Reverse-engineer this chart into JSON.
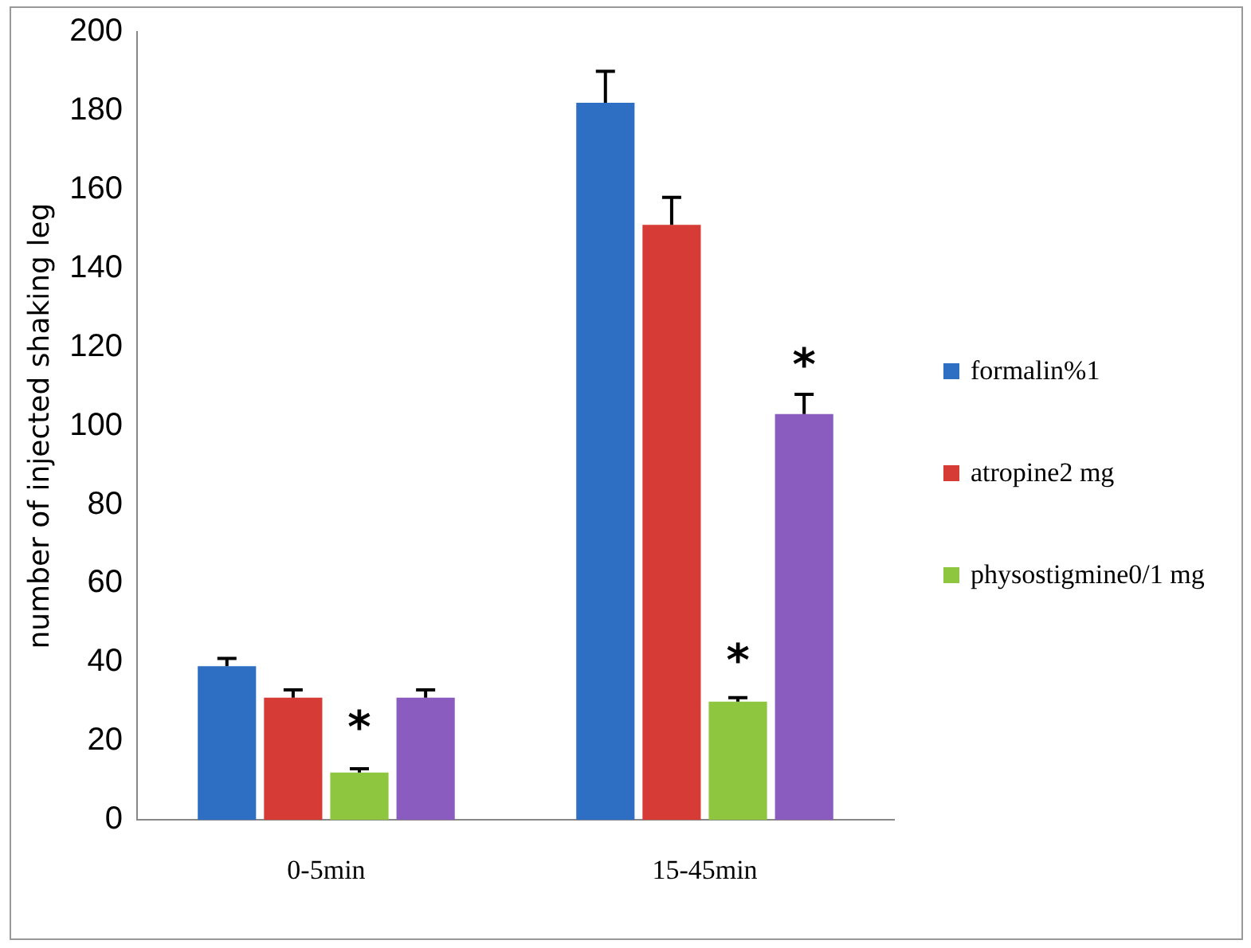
{
  "chart_data": {
    "type": "bar",
    "ylabel": "number of injected shaking leg",
    "categories": [
      "0-5min",
      "15-45min"
    ],
    "series": [
      {
        "name": "formalin%1",
        "color": "#2e6fc4",
        "values": [
          39,
          182
        ],
        "errors": [
          2,
          8
        ]
      },
      {
        "name": "atropine2 mg",
        "color": "#d63b36",
        "values": [
          31,
          151
        ],
        "errors": [
          2,
          7
        ]
      },
      {
        "name": "physostigmine0/1 mg",
        "color": "#8ec63f",
        "values": [
          12,
          30
        ],
        "errors": [
          1,
          1
        ]
      },
      {
        "color": "#8a5cbf",
        "values": [
          31,
          103
        ],
        "errors": [
          2,
          5
        ]
      }
    ],
    "ylim": [
      0,
      200
    ],
    "yticks": [
      0,
      20,
      40,
      60,
      80,
      100,
      120,
      140,
      160,
      180,
      200
    ],
    "grid": false,
    "legend": "right",
    "annotations": [
      {
        "text": "*",
        "x": "0-5min",
        "y": 25
      },
      {
        "text": "*",
        "x": "15-45min",
        "y": 42
      },
      {
        "text": "*",
        "x": "15-45min",
        "y": 117
      }
    ]
  }
}
